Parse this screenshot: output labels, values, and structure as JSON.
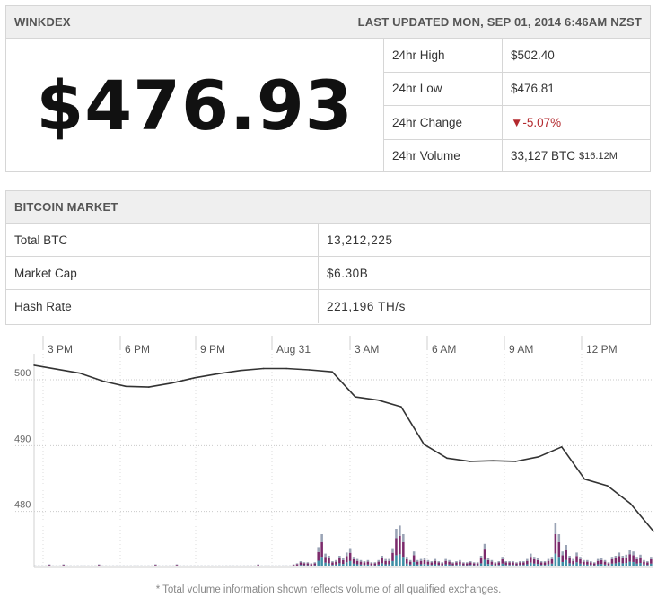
{
  "header": {
    "brand": "WINKDEX",
    "last_updated": "LAST UPDATED MON, SEP 01, 2014 6:46AM NZST"
  },
  "price": "$476.93",
  "stats": [
    {
      "label": "24hr High",
      "value": "$502.40"
    },
    {
      "label": "24hr Low",
      "value": "$476.81"
    },
    {
      "label": "24hr Change",
      "arrow": "▼",
      "value": "-5.07%"
    },
    {
      "label": "24hr Volume",
      "value": "33,127 BTC",
      "sub": "$16.12M"
    }
  ],
  "market": {
    "title": "BITCOIN MARKET",
    "rows": [
      {
        "label": "Total BTC",
        "value": "13,212,225"
      },
      {
        "label": "Market Cap",
        "value": "$6.30B"
      },
      {
        "label": "Hash Rate",
        "value": "221,196 TH/s"
      }
    ]
  },
  "footnote": "* Total volume information shown reflects volume of all qualified exchanges.",
  "colors": {
    "price_line": "#333333",
    "change_down": "#b3292e",
    "vol_purple": "#7b2a6b",
    "vol_teal": "#3f8fa6",
    "vol_grey": "#9aa3b5"
  },
  "chart_data": {
    "type": "line",
    "x_ticks": [
      "3 PM",
      "6 PM",
      "9 PM",
      "Aug 31",
      "3 AM",
      "6 AM",
      "9 AM",
      "12 PM"
    ],
    "y_ticks": [
      500,
      490,
      480
    ],
    "ylim": [
      471.5,
      504.5
    ],
    "grid": true,
    "x_hours": [
      0,
      1,
      2,
      3,
      4,
      5,
      6,
      7,
      8,
      9,
      10,
      11,
      12,
      13,
      14,
      15,
      16,
      17,
      18,
      19,
      20,
      21,
      22,
      23,
      24,
      25,
      26,
      27
    ],
    "series": [
      {
        "values": [
          502.2,
          501.6,
          501.0,
          499.8,
          499.0,
          498.9,
          499.5,
          500.3,
          500.9,
          501.4,
          501.7,
          501.7,
          501.5,
          501.2,
          497.4,
          496.9,
          495.9,
          490.2,
          488.1,
          487.6,
          487.7,
          487.6,
          488.3,
          489.8,
          484.9,
          483.9,
          481.2,
          477.0
        ]
      }
    ],
    "volume_bars": [
      1,
      1,
      1,
      1,
      2,
      1,
      1,
      1,
      2,
      1,
      1,
      1,
      1,
      1,
      1,
      1,
      1,
      1,
      2,
      1,
      1,
      1,
      1,
      1,
      1,
      1,
      1,
      1,
      1,
      1,
      1,
      1,
      1,
      1,
      2,
      1,
      1,
      1,
      1,
      1,
      2,
      1,
      1,
      1,
      1,
      1,
      1,
      1,
      1,
      1,
      1,
      1,
      1,
      1,
      1,
      1,
      1,
      1,
      1,
      1,
      1,
      1,
      1,
      2,
      1,
      1,
      1,
      1,
      1,
      1,
      1,
      1,
      1,
      2,
      3,
      5,
      4,
      4,
      3,
      4,
      18,
      30,
      12,
      10,
      5,
      6,
      10,
      8,
      13,
      17,
      9,
      7,
      6,
      5,
      6,
      4,
      4,
      6,
      10,
      7,
      7,
      17,
      35,
      38,
      30,
      9,
      6,
      14,
      6,
      7,
      8,
      6,
      5,
      7,
      5,
      4,
      7,
      6,
      4,
      5,
      6,
      4,
      4,
      5,
      4,
      4,
      10,
      21,
      8,
      6,
      4,
      5,
      9,
      5,
      5,
      5,
      4,
      5,
      5,
      7,
      12,
      9,
      8,
      5,
      5,
      7,
      9,
      40,
      30,
      14,
      20,
      10,
      7,
      13,
      9,
      6,
      6,
      5,
      4,
      7,
      8,
      6,
      4,
      9,
      10,
      13,
      10,
      11,
      15,
      14,
      9,
      11,
      6,
      5,
      9
    ]
  }
}
